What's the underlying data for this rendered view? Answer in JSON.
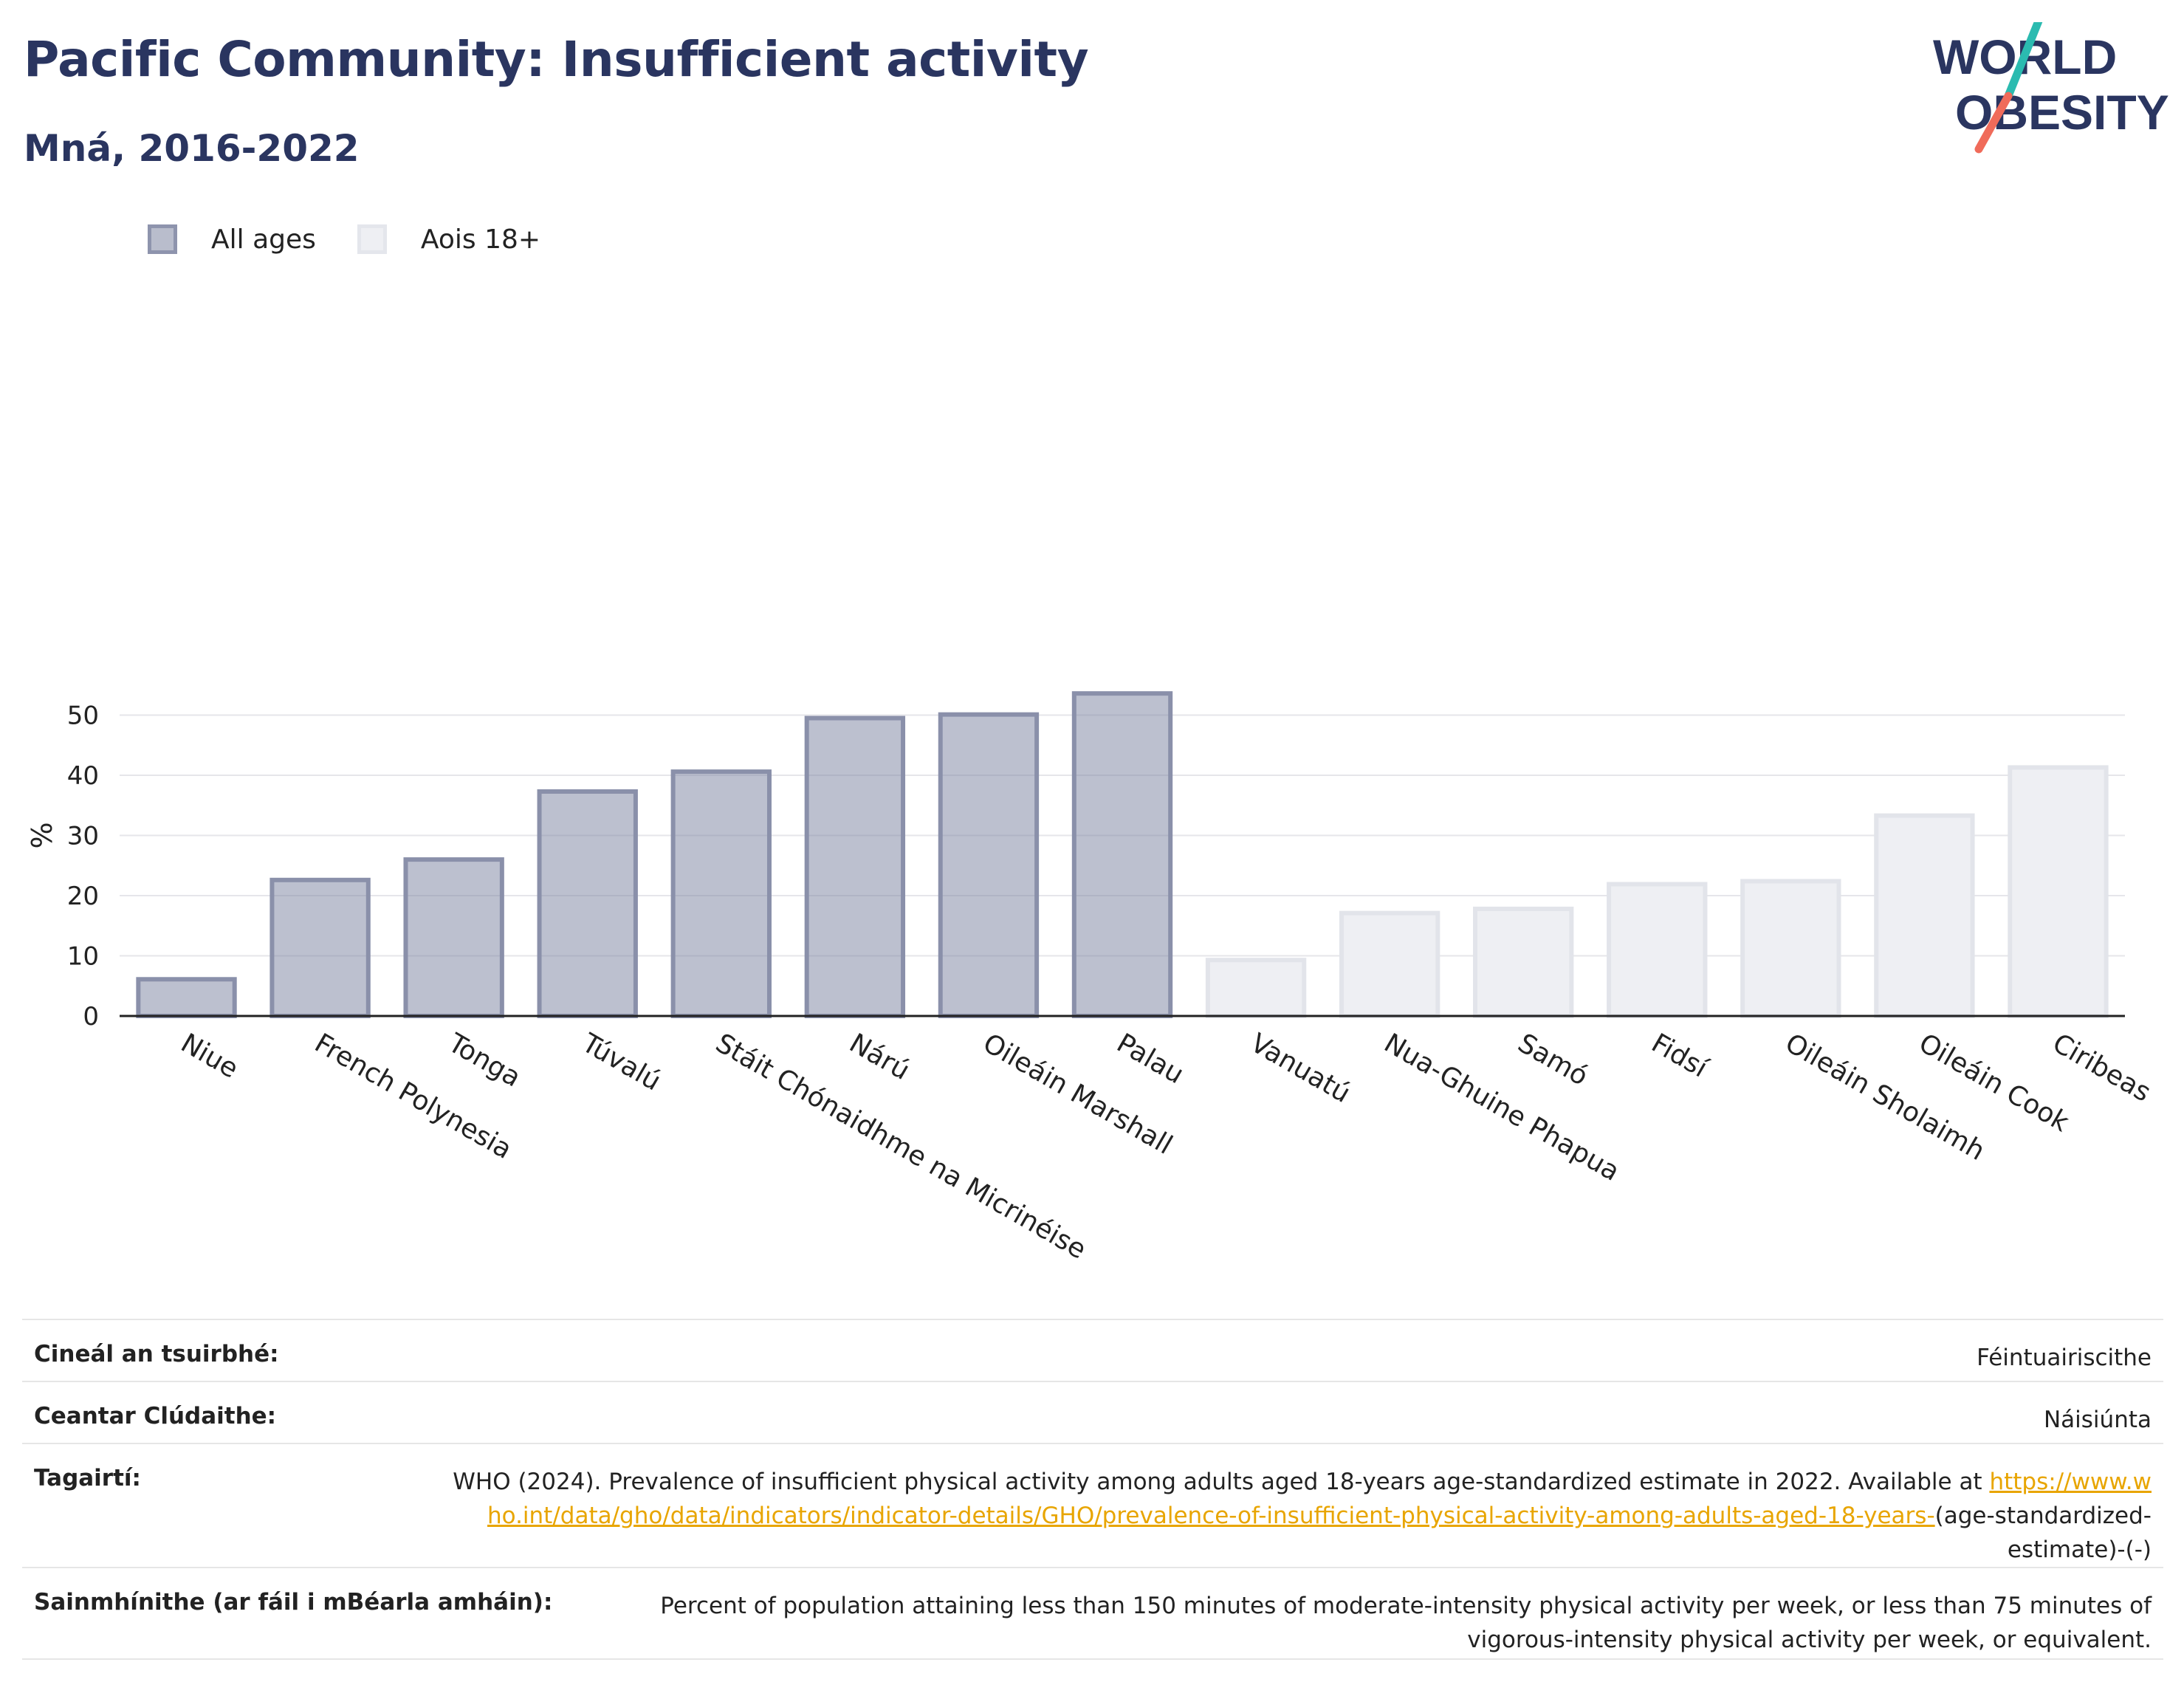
{
  "header": {
    "title": "Pacific Community: Insufficient activity",
    "subtitle": "Mná, 2016-2022"
  },
  "logo": {
    "line1": "WORLD",
    "line2": "OBESITY",
    "accent_teal": "#2bbbb0",
    "accent_coral": "#f06b5a",
    "text_color": "#2a3560"
  },
  "legend": [
    {
      "label": "All ages",
      "color": "#7f86a3"
    },
    {
      "label": "Aois 18+",
      "color": "#e3e5ec"
    }
  ],
  "chart_data": {
    "type": "bar",
    "ylabel": "%",
    "ylim": [
      0,
      55
    ],
    "yticks": [
      0,
      10,
      20,
      30,
      40,
      50
    ],
    "grid": true,
    "legend_position": "top-left",
    "categories": [
      "Niue",
      "French Polynesia",
      "Tonga",
      "Túvalú",
      "Stáit Chónaidhme na Micrinéise",
      "Nárú",
      "Oileáin Marshall",
      "Palau",
      "Vanuatú",
      "Nua-Ghuine Phapua",
      "Samó",
      "Fidsí",
      "Oileáin Sholaimh",
      "Oileáin Cook",
      "Ciribeas"
    ],
    "values": [
      6.1,
      22.6,
      26.0,
      37.3,
      40.6,
      49.5,
      50.1,
      53.6,
      9.3,
      17.1,
      17.8,
      21.9,
      22.4,
      33.3,
      41.3
    ],
    "groups": [
      "All ages",
      "All ages",
      "All ages",
      "All ages",
      "All ages",
      "All ages",
      "All ages",
      "All ages",
      "Aois 18+",
      "Aois 18+",
      "Aois 18+",
      "Aois 18+",
      "Aois 18+",
      "Aois 18+",
      "Aois 18+"
    ],
    "colors": {
      "All ages": "#7f86a3",
      "Aois 18+": "#e3e5ec"
    }
  },
  "info": {
    "survey_label": "Cineál an tsuirbhé:",
    "survey_value": "Féintuairiscithe",
    "area_label": "Ceantar Clúdaithe:",
    "area_value": "Náisiúnta",
    "refs_label": "Tagairtí:",
    "refs_text": "WHO (2024). Prevalence of insufficient physical activity among adults aged 18-years age-standardized estimate in 2022. Available at",
    "refs_link": "https://www.who.int/data/gho/data/indicators/indicator-details/GHO/prevalence-of-insufficient-physical-activity-among-adults-aged-18-years-",
    "refs_tail": "(age-standardized-estimate)-(-)",
    "def_label": "Sainmhínithe (ar fáil i mBéarla amháin):",
    "def_value": "Percent of population attaining less than 150 minutes of moderate-intensity physical activity per week, or less than 75 minutes of vigorous-intensity physical activity per week, or equivalent."
  }
}
